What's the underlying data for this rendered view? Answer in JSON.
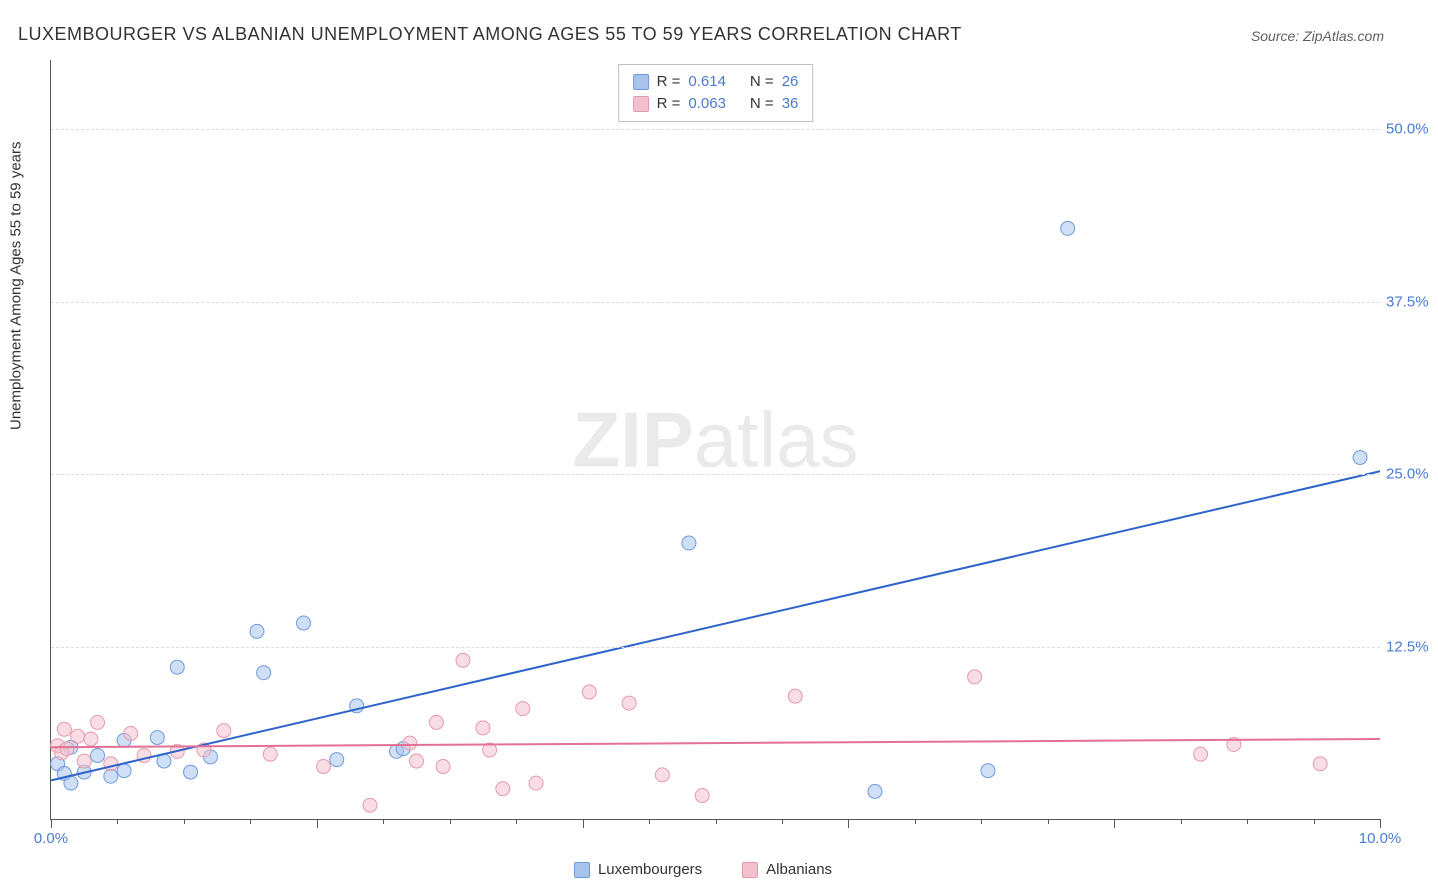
{
  "title": "LUXEMBOURGER VS ALBANIAN UNEMPLOYMENT AMONG AGES 55 TO 59 YEARS CORRELATION CHART",
  "source": "Source: ZipAtlas.com",
  "watermark_prefix": "ZIP",
  "watermark_suffix": "atlas",
  "ylabel": "Unemployment Among Ages 55 to 59 years",
  "chart": {
    "type": "scatter",
    "xlim": [
      0,
      10
    ],
    "ylim": [
      0,
      55
    ],
    "xticks_major": [
      0,
      10
    ],
    "xticks_minor": [
      2,
      4,
      6,
      8
    ],
    "xticks_minor2": [
      0.5,
      1,
      1.5,
      2.5,
      3,
      3.5,
      4.5,
      5,
      5.5,
      6.5,
      7,
      7.5,
      8.5,
      9,
      9.5
    ],
    "xtick_label_fmt": "{v}.0%",
    "yticks": [
      12.5,
      25.0,
      37.5,
      50.0
    ],
    "ytick_label_fmt": "{v}%",
    "grid_color": "#dcdcdc",
    "axis_color": "#555555",
    "background_color": "#ffffff",
    "label_fontsize": 15,
    "title_fontsize": 18,
    "tick_color": "#4a7bd0",
    "marker_radius": 7,
    "marker_opacity": 0.55,
    "line_width": 2,
    "series": [
      {
        "name": "Luxembourgers",
        "color": "#6f9bdc",
        "fill": "#a8c4ec",
        "line_color": "#2e63c9",
        "R": "0.614",
        "N": "26",
        "regression": {
          "x1": 0,
          "y1": 2.8,
          "x2": 10,
          "y2": 25.2
        },
        "points": [
          [
            0.05,
            4.0
          ],
          [
            0.1,
            3.3
          ],
          [
            0.15,
            5.2
          ],
          [
            0.15,
            2.6
          ],
          [
            0.25,
            3.4
          ],
          [
            0.35,
            4.6
          ],
          [
            0.45,
            3.1
          ],
          [
            0.55,
            5.7
          ],
          [
            0.55,
            3.5
          ],
          [
            0.8,
            5.9
          ],
          [
            0.85,
            4.2
          ],
          [
            0.95,
            11.0
          ],
          [
            1.05,
            3.4
          ],
          [
            1.2,
            4.5
          ],
          [
            1.55,
            13.6
          ],
          [
            1.6,
            10.6
          ],
          [
            1.9,
            14.2
          ],
          [
            2.15,
            4.3
          ],
          [
            2.3,
            8.2
          ],
          [
            2.6,
            4.9
          ],
          [
            2.65,
            5.1
          ],
          [
            4.8,
            20.0
          ],
          [
            6.2,
            2.0
          ],
          [
            7.05,
            3.5
          ],
          [
            7.65,
            42.8
          ],
          [
            9.85,
            26.2
          ]
        ]
      },
      {
        "name": "Albanians",
        "color": "#e59aac",
        "fill": "#f3c1cd",
        "line_color": "#e37095",
        "R": "0.063",
        "N": "36",
        "regression": {
          "x1": 0,
          "y1": 5.2,
          "x2": 10,
          "y2": 5.8
        },
        "points": [
          [
            0.05,
            5.3
          ],
          [
            0.08,
            4.8
          ],
          [
            0.1,
            6.5
          ],
          [
            0.12,
            5.1
          ],
          [
            0.2,
            6.0
          ],
          [
            0.25,
            4.2
          ],
          [
            0.3,
            5.8
          ],
          [
            0.35,
            7.0
          ],
          [
            0.45,
            4.0
          ],
          [
            0.6,
            6.2
          ],
          [
            0.7,
            4.6
          ],
          [
            0.95,
            4.9
          ],
          [
            1.15,
            5.0
          ],
          [
            1.3,
            6.4
          ],
          [
            1.65,
            4.7
          ],
          [
            2.05,
            3.8
          ],
          [
            2.4,
            1.0
          ],
          [
            2.7,
            5.5
          ],
          [
            2.75,
            4.2
          ],
          [
            2.9,
            7.0
          ],
          [
            2.95,
            3.8
          ],
          [
            3.1,
            11.5
          ],
          [
            3.25,
            6.6
          ],
          [
            3.3,
            5.0
          ],
          [
            3.4,
            2.2
          ],
          [
            3.55,
            8.0
          ],
          [
            3.65,
            2.6
          ],
          [
            4.05,
            9.2
          ],
          [
            4.35,
            8.4
          ],
          [
            4.6,
            3.2
          ],
          [
            4.9,
            1.7
          ],
          [
            5.6,
            8.9
          ],
          [
            6.95,
            10.3
          ],
          [
            8.65,
            4.7
          ],
          [
            8.9,
            5.4
          ],
          [
            9.55,
            4.0
          ]
        ]
      }
    ]
  },
  "stat_legend_labels": {
    "R": "R  =",
    "N": "N  ="
  },
  "bottom_legend_labels": [
    "Luxembourgers",
    "Albanians"
  ]
}
